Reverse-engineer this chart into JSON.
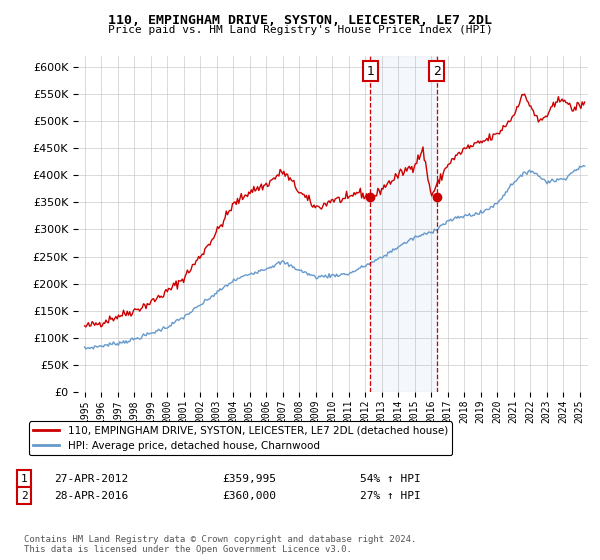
{
  "title1": "110, EMPINGHAM DRIVE, SYSTON, LEICESTER, LE7 2DL",
  "title2": "Price paid vs. HM Land Registry's House Price Index (HPI)",
  "ylim": [
    0,
    620000
  ],
  "yticks": [
    0,
    50000,
    100000,
    150000,
    200000,
    250000,
    300000,
    350000,
    400000,
    450000,
    500000,
    550000,
    600000
  ],
  "hpi_color": "#6699cc",
  "price_color": "#cc0000",
  "marker1_date": 2012.32,
  "marker2_date": 2016.33,
  "marker1_price": 359995,
  "marker2_price": 360000,
  "legend_label1": "110, EMPINGHAM DRIVE, SYSTON, LEICESTER, LE7 2DL (detached house)",
  "legend_label2": "HPI: Average price, detached house, Charnwood",
  "footer": "Contains HM Land Registry data © Crown copyright and database right 2024.\nThis data is licensed under the Open Government Licence v3.0.",
  "background_color": "#ffffff",
  "grid_color": "#cccccc",
  "hpi_years": [
    1995,
    1996,
    1997,
    1998,
    1999,
    2000,
    2001,
    2002,
    2003,
    2004,
    2005,
    2006,
    2007,
    2008,
    2009,
    2010,
    2011,
    2012,
    2013,
    2014,
    2015,
    2016,
    2017,
    2018,
    2019,
    2020,
    2021,
    2022,
    2023,
    2024,
    2025
  ],
  "hpi_values": [
    80000,
    85000,
    90000,
    97000,
    108000,
    120000,
    138000,
    160000,
    183000,
    205000,
    218000,
    228000,
    240000,
    225000,
    212000,
    215000,
    218000,
    233000,
    248000,
    268000,
    285000,
    295000,
    315000,
    325000,
    330000,
    348000,
    388000,
    410000,
    388000,
    393000,
    415000
  ],
  "price_years": [
    1995,
    1996,
    1997,
    1998,
    1999,
    2000,
    2001,
    2002,
    2003,
    2004,
    2005,
    2006,
    2007,
    2007.5,
    2008,
    2009,
    2009.5,
    2010,
    2011,
    2011.5,
    2012,
    2012.5,
    2013,
    2014,
    2015,
    2015.5,
    2016,
    2016.5,
    2017,
    2018,
    2019,
    2020,
    2021,
    2021.5,
    2022,
    2022.5,
    2023,
    2023.5,
    2024,
    2024.5,
    2025
  ],
  "price_values": [
    120000,
    128000,
    140000,
    150000,
    165000,
    185000,
    210000,
    250000,
    295000,
    345000,
    370000,
    382000,
    407000,
    390000,
    370000,
    340000,
    345000,
    355000,
    355000,
    370000,
    362000,
    358000,
    375000,
    400000,
    420000,
    447000,
    362000,
    390000,
    420000,
    448000,
    460000,
    475000,
    510000,
    550000,
    530000,
    498000,
    510000,
    530000,
    545000,
    520000,
    530000
  ]
}
